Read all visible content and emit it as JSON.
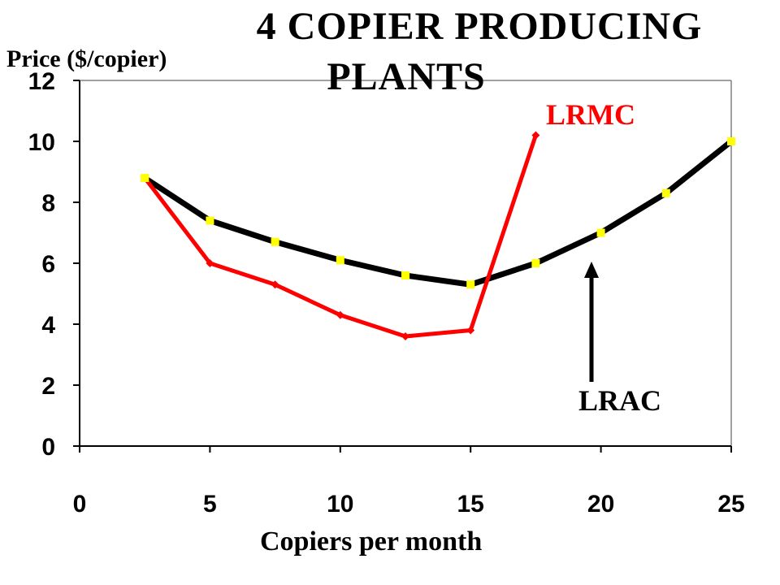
{
  "chart_data": {
    "type": "line",
    "title_line1": "4 COPIER PRODUCING",
    "title_line2": "PLANTS",
    "xlabel": "Copiers per month",
    "ylabel": "Price ($/copier)",
    "xlim": [
      0,
      25
    ],
    "ylim": [
      0,
      12
    ],
    "xticks": [
      0,
      5,
      10,
      15,
      20,
      25
    ],
    "yticks": [
      0,
      2,
      4,
      6,
      8,
      10,
      12
    ],
    "grid": false,
    "series": [
      {
        "name": "LRAC",
        "color": "#000000",
        "marker_color": "#ffff00",
        "x": [
          2.5,
          5,
          7.5,
          10,
          12.5,
          15,
          17.5,
          20,
          22.5,
          25
        ],
        "values": [
          8.8,
          7.4,
          6.7,
          6.1,
          5.6,
          5.3,
          6.0,
          7.0,
          8.3,
          10.0
        ]
      },
      {
        "name": "LRMC",
        "color": "#ff0000",
        "x": [
          2.5,
          5,
          7.5,
          10,
          12.5,
          15,
          17.5
        ],
        "values": [
          8.8,
          6.0,
          5.3,
          4.3,
          3.6,
          3.8,
          10.2
        ]
      }
    ],
    "annotations": [
      {
        "text": "LRMC",
        "color": "#ff0000"
      },
      {
        "text": "LRAC",
        "color": "#000000"
      }
    ]
  }
}
